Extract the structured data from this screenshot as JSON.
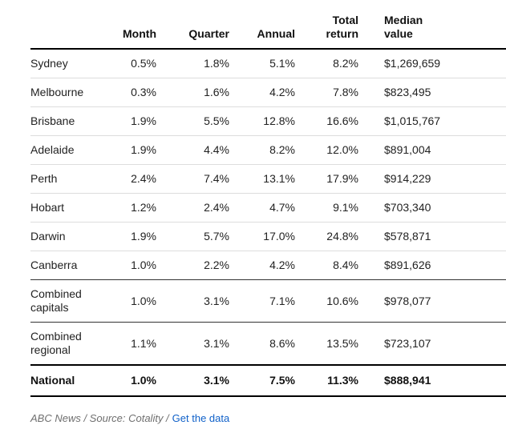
{
  "chart_data": {
    "type": "table",
    "columns": {
      "region": "",
      "month": "Month",
      "quarter": "Quarter",
      "annual": "Annual",
      "total_return": "Total return",
      "median_value": "Median value"
    },
    "rows": [
      {
        "label": "Sydney",
        "month": "0.5%",
        "quarter": "1.8%",
        "annual": "5.1%",
        "total_return": "8.2%",
        "median_value": "$1,269,659"
      },
      {
        "label": "Melbourne",
        "month": "0.3%",
        "quarter": "1.6%",
        "annual": "4.2%",
        "total_return": "7.8%",
        "median_value": "$823,495"
      },
      {
        "label": "Brisbane",
        "month": "1.9%",
        "quarter": "5.5%",
        "annual": "12.8%",
        "total_return": "16.6%",
        "median_value": "$1,015,767"
      },
      {
        "label": "Adelaide",
        "month": "1.9%",
        "quarter": "4.4%",
        "annual": "8.2%",
        "total_return": "12.0%",
        "median_value": "$891,004"
      },
      {
        "label": "Perth",
        "month": "2.4%",
        "quarter": "7.4%",
        "annual": "13.1%",
        "total_return": "17.9%",
        "median_value": "$914,229"
      },
      {
        "label": "Hobart",
        "month": "1.2%",
        "quarter": "2.4%",
        "annual": "4.7%",
        "total_return": "9.1%",
        "median_value": "$703,340"
      },
      {
        "label": "Darwin",
        "month": "1.9%",
        "quarter": "5.7%",
        "annual": "17.0%",
        "total_return": "24.8%",
        "median_value": "$578,871"
      },
      {
        "label": "Canberra",
        "month": "1.0%",
        "quarter": "2.2%",
        "annual": "4.2%",
        "total_return": "8.4%",
        "median_value": "$891,626"
      },
      {
        "label": "Combined capitals",
        "month": "1.0%",
        "quarter": "3.1%",
        "annual": "7.1%",
        "total_return": "10.6%",
        "median_value": "$978,077"
      },
      {
        "label": "Combined regional",
        "month": "1.1%",
        "quarter": "3.1%",
        "annual": "8.6%",
        "total_return": "13.5%",
        "median_value": "$723,107"
      },
      {
        "label": "National",
        "month": "1.0%",
        "quarter": "3.1%",
        "annual": "7.5%",
        "total_return": "11.3%",
        "median_value": "$888,941"
      }
    ],
    "layout": {
      "grid": "horizontal row separators only",
      "numeric_alignment": "right",
      "total_row": "National"
    }
  },
  "footer": {
    "credit": "ABC News / Source: Cotality /",
    "link_label": "Get the data"
  },
  "colors": {
    "link_blue": "#1061c9",
    "rule_black": "#000000",
    "rule_dark": "#333333",
    "rule_light": "#dddddd",
    "credit_gray": "#6f6f6f",
    "text": "#222222"
  }
}
